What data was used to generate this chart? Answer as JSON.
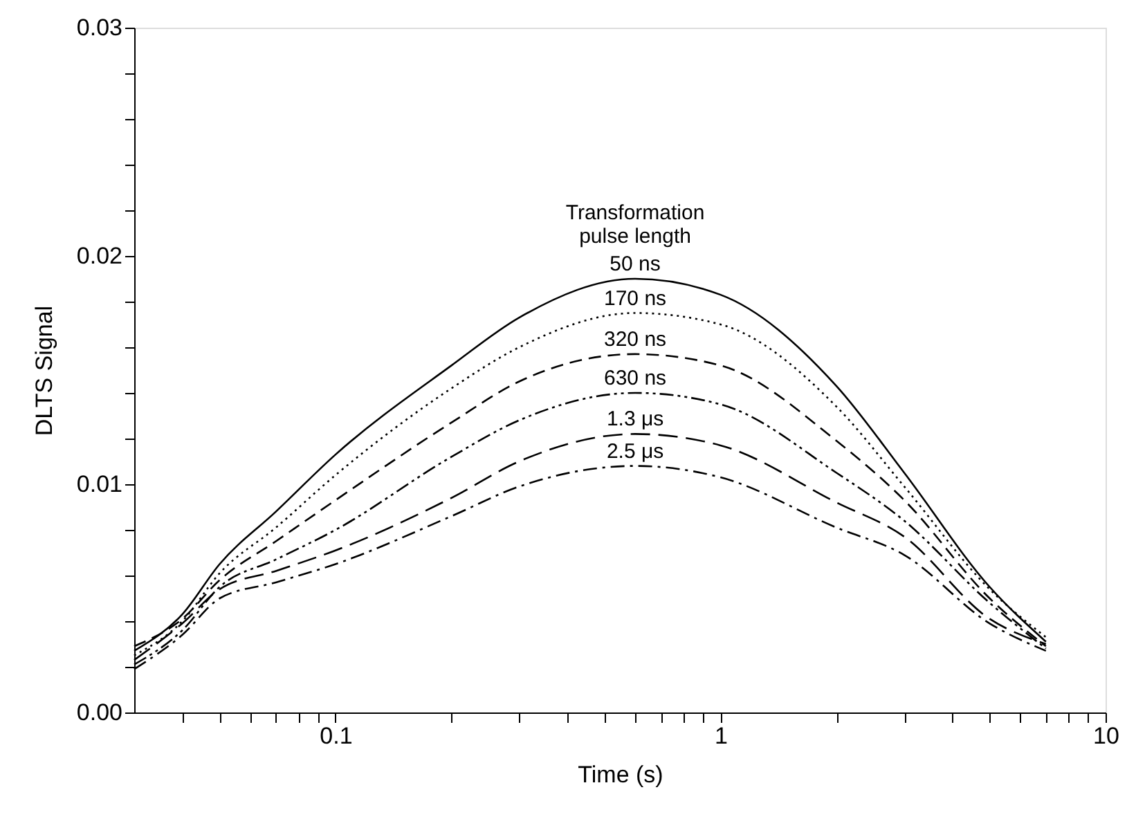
{
  "chart_data": {
    "type": "line",
    "xlabel": "Time (s)",
    "ylabel": "DLTS Signal",
    "log": "x",
    "grid": false,
    "marker": "none",
    "x": [
      0.03,
      0.04,
      0.05,
      0.07,
      0.1,
      0.2,
      0.3,
      0.6,
      1,
      2,
      3,
      5,
      7
    ],
    "series": [
      {
        "name": "50 ns",
        "color": "#000000",
        "line_style": "solid",
        "values": [
          0.0027,
          0.0043,
          0.0065,
          0.0088,
          0.0113,
          0.0152,
          0.0173,
          0.019,
          0.0183,
          0.0143,
          0.0105,
          0.0055,
          0.0031
        ]
      },
      {
        "name": "170 ns",
        "color": "#000000",
        "line_style": "dotted",
        "values": [
          0.0025,
          0.004,
          0.0061,
          0.0081,
          0.0104,
          0.0142,
          0.016,
          0.0175,
          0.017,
          0.0134,
          0.0099,
          0.0054,
          0.0033
        ]
      },
      {
        "name": "320 ns",
        "color": "#000000",
        "line_style": "dashed",
        "values": [
          0.0029,
          0.0041,
          0.0058,
          0.0075,
          0.0093,
          0.0127,
          0.0145,
          0.0157,
          0.0152,
          0.0119,
          0.0093,
          0.005,
          0.0029
        ]
      },
      {
        "name": "630 ns",
        "color": "#000000",
        "line_style": "dashdotdot",
        "values": [
          0.0021,
          0.0036,
          0.0055,
          0.0067,
          0.008,
          0.0112,
          0.0128,
          0.014,
          0.0135,
          0.0105,
          0.0084,
          0.0048,
          0.0028
        ]
      },
      {
        "name": "1.3 μs",
        "color": "#000000",
        "line_style": "longdash",
        "values": [
          0.0023,
          0.0039,
          0.0054,
          0.0062,
          0.0071,
          0.0094,
          0.011,
          0.0122,
          0.0117,
          0.0092,
          0.0077,
          0.0041,
          0.003
        ]
      },
      {
        "name": "2.5 μs",
        "color": "#000000",
        "line_style": "dashdot",
        "values": [
          0.0019,
          0.0034,
          0.005,
          0.0057,
          0.0065,
          0.0086,
          0.0099,
          0.0108,
          0.0103,
          0.0081,
          0.0069,
          0.0039,
          0.0027
        ]
      }
    ],
    "xlim": [
      0.03,
      10
    ],
    "xticks": [
      {
        "value": 0.04,
        "label": null
      },
      {
        "value": 0.05,
        "label": null
      },
      {
        "value": 0.06,
        "label": null
      },
      {
        "value": 0.07,
        "label": null
      },
      {
        "value": 0.08,
        "label": null
      },
      {
        "value": 0.09,
        "label": null
      },
      0.1,
      {
        "value": 0.2,
        "label": null
      },
      {
        "value": 0.3,
        "label": null
      },
      {
        "value": 0.4,
        "label": null
      },
      {
        "value": 0.5,
        "label": null
      },
      {
        "value": 0.6,
        "label": null
      },
      {
        "value": 0.7,
        "label": null
      },
      {
        "value": 0.8,
        "label": null
      },
      {
        "value": 0.9,
        "label": null
      },
      1,
      {
        "value": 2,
        "label": null
      },
      {
        "value": 3,
        "label": null
      },
      {
        "value": 4,
        "label": null
      },
      {
        "value": 5,
        "label": null
      },
      {
        "value": 6,
        "label": null
      },
      {
        "value": 7,
        "label": null
      },
      {
        "value": 8,
        "label": null
      },
      {
        "value": 9,
        "label": null
      },
      10
    ],
    "ylim": [
      0,
      0.03
    ],
    "yticks": [
      {
        "value": 0,
        "label": "0.00"
      },
      {
        "value": 0.002,
        "label": null
      },
      {
        "value": 0.004,
        "label": null
      },
      {
        "value": 0.006,
        "label": null
      },
      {
        "value": 0.008,
        "label": null
      },
      {
        "value": 0.01,
        "label": "0.01"
      },
      {
        "value": 0.012,
        "label": null
      },
      {
        "value": 0.014,
        "label": null
      },
      {
        "value": 0.016,
        "label": null
      },
      {
        "value": 0.018,
        "label": null
      },
      {
        "value": 0.02,
        "label": "0.02"
      },
      {
        "value": 0.022,
        "label": null
      },
      {
        "value": 0.024,
        "label": null
      },
      {
        "value": 0.026,
        "label": null
      },
      {
        "value": 0.028,
        "label": null
      },
      {
        "value": 0.03,
        "label": "0.03"
      }
    ],
    "legend_title": "Transformation\npulse length"
  }
}
